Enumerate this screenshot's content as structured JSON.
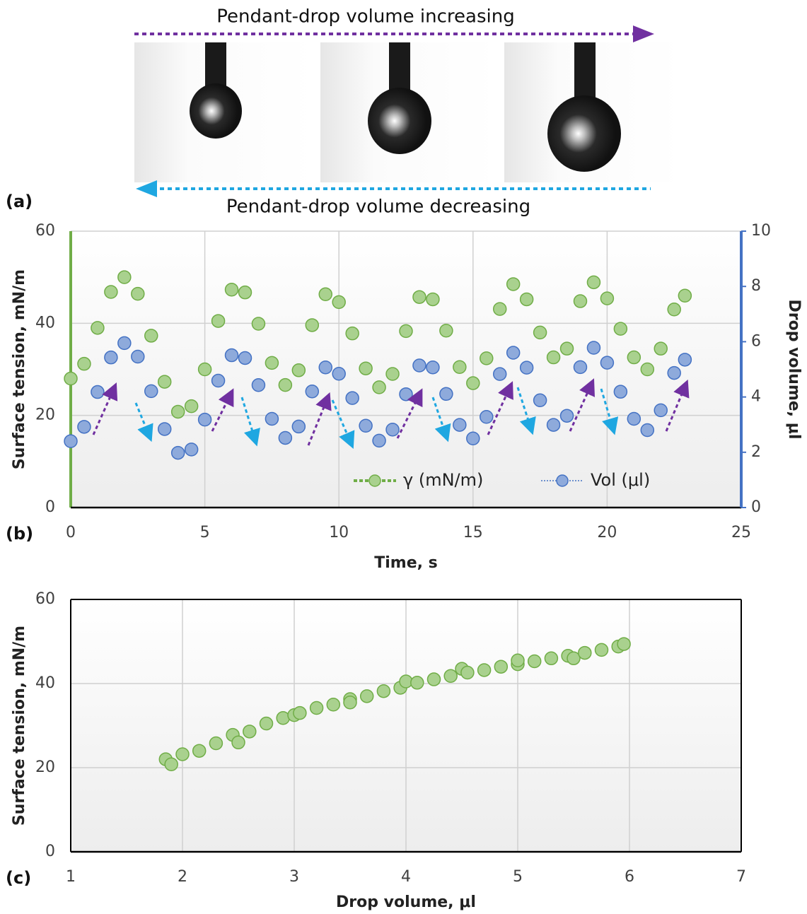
{
  "panel_a": {
    "label": "(a)",
    "top_text": "Pendant-drop volume increasing",
    "bottom_text": "Pendant-drop volume decreasing"
  },
  "chart_data": [
    {
      "type": "line",
      "panel_label": "(b)",
      "x_label": "Time, s",
      "y_label": "Surface tension, mN/m",
      "y2_label": "Drop volume, μl",
      "x": [
        0,
        0.5,
        1,
        1.5,
        2,
        2.5,
        3,
        3.5,
        4,
        4.5,
        5,
        5.5,
        6,
        6.5,
        7,
        7.5,
        8,
        8.5,
        9,
        9.5,
        10,
        10.5,
        11,
        11.5,
        12,
        12.5,
        13,
        13.5,
        14,
        14.5,
        15,
        15.5,
        16,
        16.5,
        17,
        17.5,
        18,
        18.5,
        19,
        19.5,
        20,
        20.5,
        21,
        21.5,
        22,
        22.5,
        22.9
      ],
      "xlim": [
        0,
        25
      ],
      "xticks": [
        0,
        5,
        10,
        15,
        20,
        25
      ],
      "ylim": [
        0,
        60
      ],
      "yticks": [
        0,
        20,
        40,
        60
      ],
      "y2lim": [
        0,
        10
      ],
      "y2ticks": [
        0,
        2,
        4,
        6,
        8,
        10
      ],
      "grid": true,
      "series": [
        {
          "name": "γ (mN/m)",
          "color": "#70ad47",
          "fill": "#a9d18e",
          "values": [
            28,
            31.2,
            39,
            46.8,
            50,
            46.4,
            37.3,
            27.3,
            20.8,
            22.0,
            30.0,
            40.5,
            47.3,
            46.7,
            39.9,
            31.4,
            26.6,
            29.8,
            39.6,
            46.3,
            44.6,
            37.8,
            30.2,
            26.1,
            29.0,
            38.3,
            45.7,
            45.2,
            38.4,
            30.5,
            27,
            32.4,
            43.1,
            48.5,
            45.2,
            38.0,
            32.6,
            34.5,
            44.8,
            48.9,
            45.4,
            38.8,
            32.6,
            30,
            34.5,
            43.0,
            46
          ]
        },
        {
          "name": "Vol  (μl)",
          "color": "#4472c4",
          "fill": "#8eaadb",
          "axis": "y2",
          "values": [
            2.4,
            2.92,
            4.18,
            5.43,
            5.95,
            5.46,
            4.21,
            2.84,
            1.98,
            2.1,
            3.18,
            4.59,
            5.51,
            5.41,
            4.43,
            3.21,
            2.52,
            2.93,
            4.2,
            5.07,
            4.84,
            3.96,
            2.96,
            2.42,
            2.82,
            4.1,
            5.14,
            5.07,
            4.11,
            2.99,
            2.5,
            3.28,
            4.83,
            5.6,
            5.06,
            3.88,
            2.99,
            3.32,
            5.08,
            5.78,
            5.24,
            4.19,
            3.21,
            2.8,
            3.52,
            4.87,
            5.35
          ]
        }
      ]
    },
    {
      "type": "scatter",
      "panel_label": "(c)",
      "x_label": "Drop volume, μl",
      "y_label": "Surface tension, mN/m",
      "color": "#70ad47",
      "fill": "#a9d18e",
      "x": [
        1.85,
        1.9,
        2.0,
        2.15,
        2.3,
        2.45,
        2.5,
        2.6,
        2.75,
        2.9,
        3.0,
        3.05,
        3.2,
        3.35,
        3.5,
        3.5,
        3.65,
        3.8,
        3.95,
        4.0,
        4.1,
        4.25,
        4.4,
        4.5,
        4.55,
        4.7,
        4.85,
        5.0,
        5.0,
        5.15,
        5.3,
        5.45,
        5.5,
        5.6,
        5.75,
        5.9,
        5.95
      ],
      "values": [
        22.0,
        20.8,
        23.2,
        24.0,
        25.8,
        27.8,
        26.0,
        28.6,
        30.5,
        31.8,
        32.5,
        33.0,
        34.2,
        35.0,
        36.3,
        35.5,
        37.0,
        38.2,
        39.0,
        40.5,
        40.2,
        41.0,
        41.8,
        43.5,
        42.6,
        43.2,
        44.0,
        44.6,
        45.5,
        45.3,
        46.0,
        46.6,
        46.0,
        47.3,
        48.0,
        48.8,
        49.4
      ],
      "xlim": [
        1,
        7
      ],
      "xticks": [
        1,
        2,
        3,
        4,
        5,
        6,
        7
      ],
      "ylim": [
        0,
        60
      ],
      "yticks": [
        0,
        20,
        40,
        60
      ],
      "grid": true
    }
  ]
}
